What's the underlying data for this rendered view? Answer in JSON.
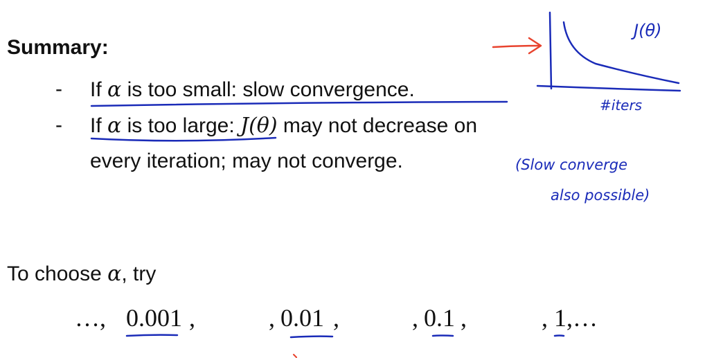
{
  "summary": {
    "heading": "Summary:",
    "dash": "-",
    "bullet1": {
      "pre": "If ",
      "alpha": "α",
      "text": " is too small: slow convergence."
    },
    "bullet2": {
      "pre": "If ",
      "alpha": "α",
      "mid": " is too large: ",
      "j": "J(θ)",
      "post": " may not decrease on",
      "line2": "every iteration; may not converge."
    }
  },
  "choose": {
    "pre": "To choose ",
    "alpha": "α",
    "post": ", try"
  },
  "sequence": {
    "lead": "…,",
    "values": [
      "0.001",
      "0.01",
      "0.1",
      "1"
    ],
    "seps": [
      ",",
      ",",
      ",",
      ","
    ],
    "trail": ",…"
  },
  "annotations": {
    "graph_label": "J(θ)",
    "x_label": "#iters",
    "note_line1": "(Slow converge",
    "note_line2": "also possible)",
    "pen_color": "#1a2bb8",
    "arrow_color": "#e8432e"
  }
}
